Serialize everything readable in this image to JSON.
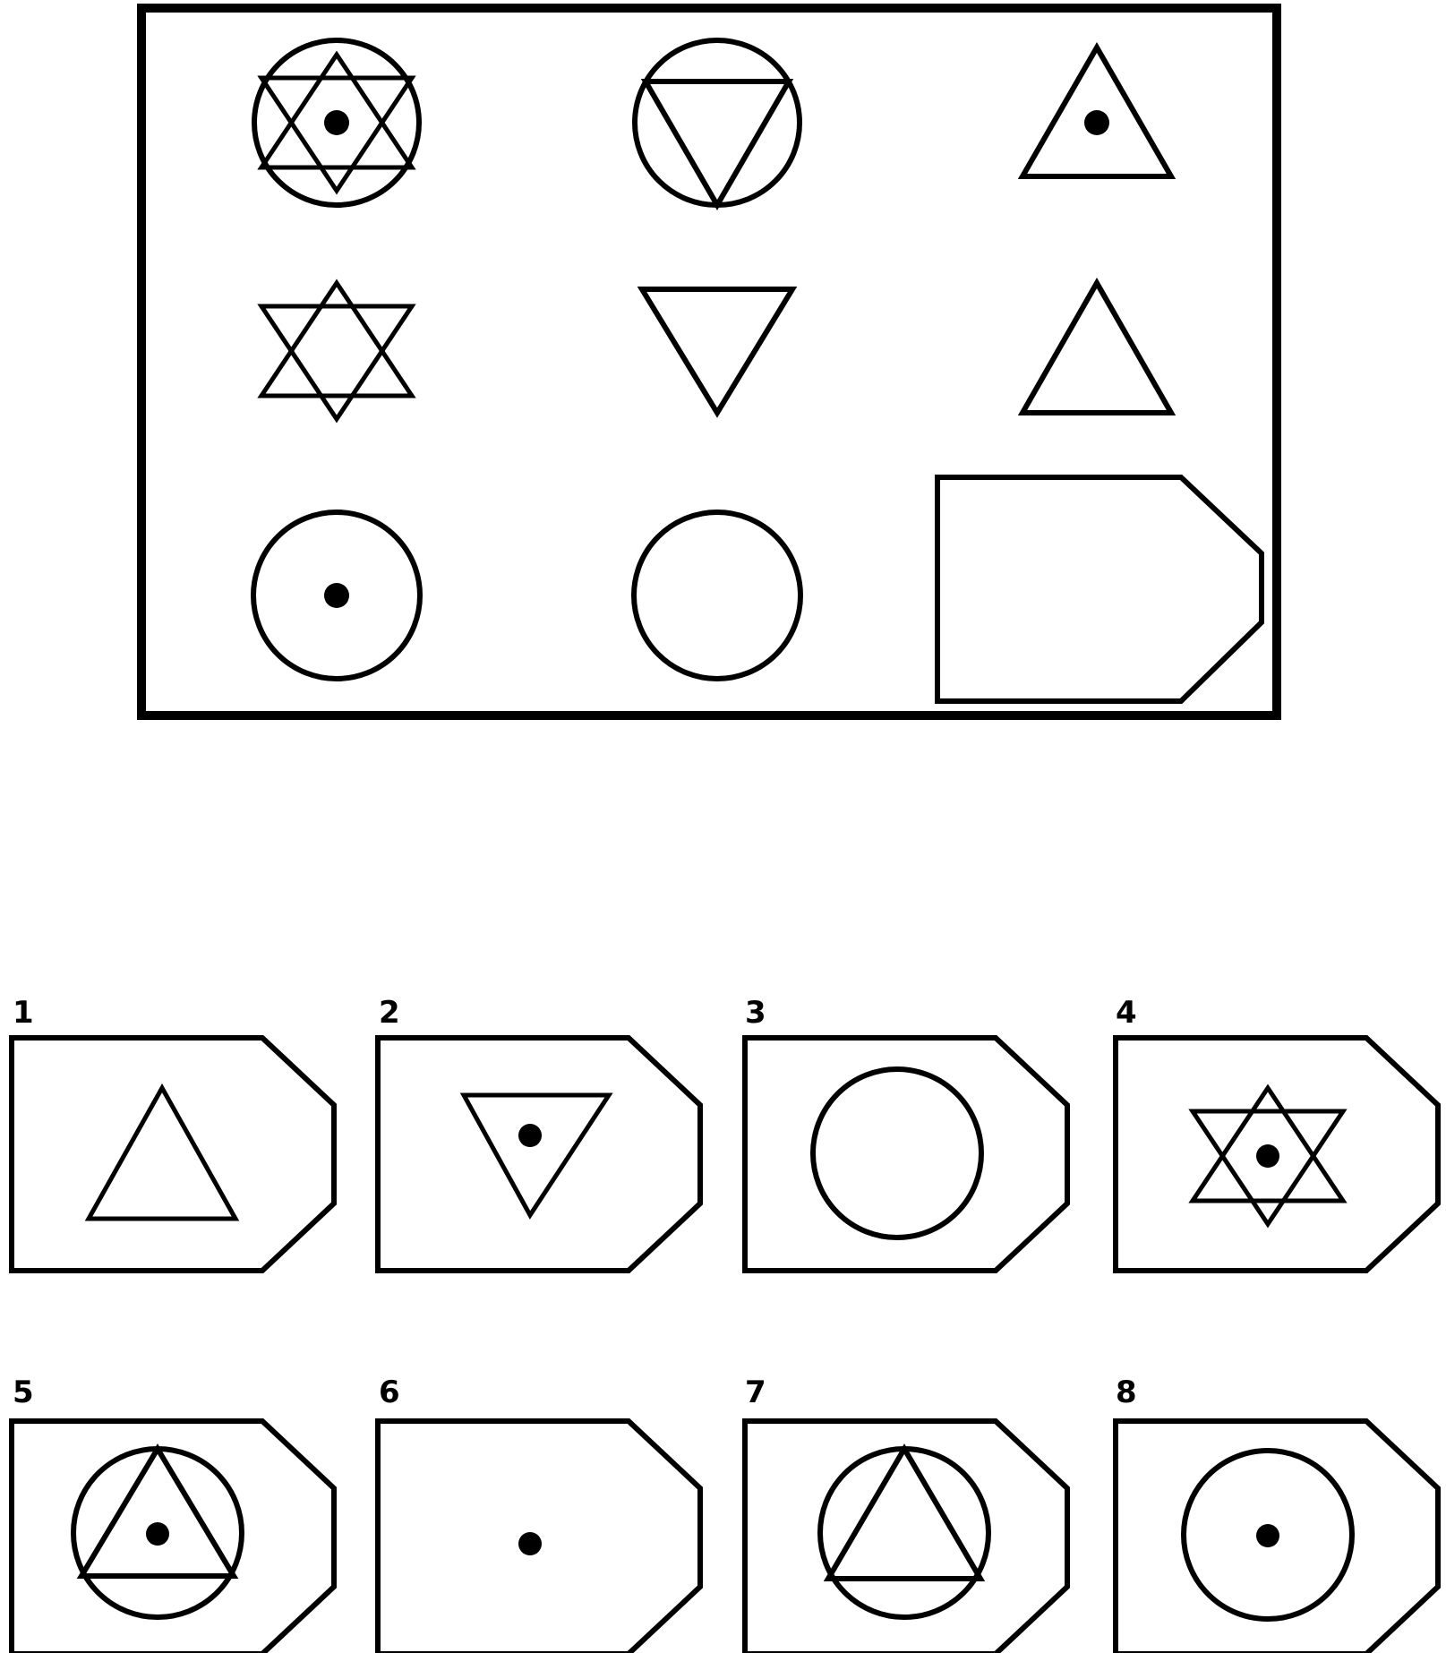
{
  "puzzle": {
    "matrix": {
      "rows": [
        [
          "star-of-david-in-circle-with-dot",
          "inverted-triangle-in-circle",
          "triangle-with-dot"
        ],
        [
          "star-of-david",
          "inverted-triangle",
          "triangle"
        ],
        [
          "circle-with-dot",
          "circle",
          "missing"
        ]
      ]
    },
    "options": [
      {
        "label": "1",
        "figure": "triangle"
      },
      {
        "label": "2",
        "figure": "inverted-triangle-with-dot"
      },
      {
        "label": "3",
        "figure": "circle"
      },
      {
        "label": "4",
        "figure": "star-of-david-with-dot"
      },
      {
        "label": "5",
        "figure": "triangle-in-circle-with-dot"
      },
      {
        "label": "6",
        "figure": "dot"
      },
      {
        "label": "7",
        "figure": "triangle-in-circle"
      },
      {
        "label": "8",
        "figure": "circle-with-dot"
      }
    ]
  }
}
